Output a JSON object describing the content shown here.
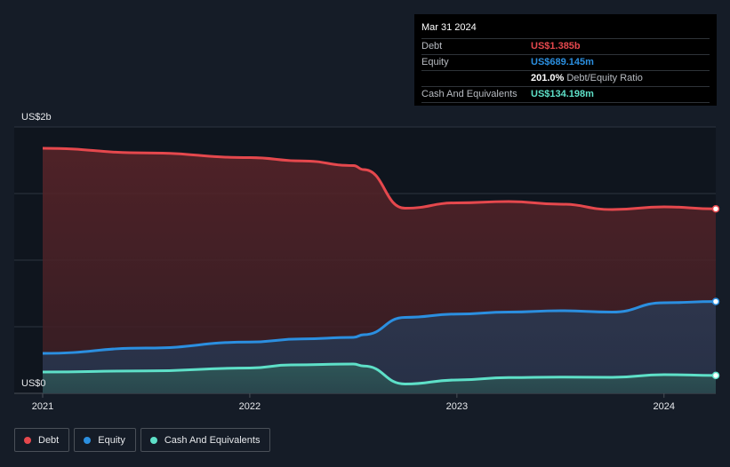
{
  "chart_data": {
    "type": "area",
    "y_top_label": "US$2b",
    "y_bottom_label": "US$0",
    "ylim": [
      0,
      2000
    ],
    "xlim": [
      2021.0,
      2024.25
    ],
    "x_ticks": [
      "2021",
      "2022",
      "2023",
      "2024"
    ],
    "grid": true,
    "legend_position": "bottom-left",
    "series": [
      {
        "name": "Debt",
        "color": "#e5484d",
        "points": [
          [
            2021.0,
            1840
          ],
          [
            2021.5,
            1805
          ],
          [
            2022.0,
            1770
          ],
          [
            2022.25,
            1745
          ],
          [
            2022.5,
            1710
          ],
          [
            2022.55,
            1680
          ],
          [
            2022.75,
            1390
          ],
          [
            2023.0,
            1430
          ],
          [
            2023.25,
            1440
          ],
          [
            2023.5,
            1420
          ],
          [
            2023.75,
            1380
          ],
          [
            2024.0,
            1400
          ],
          [
            2024.25,
            1385
          ]
        ]
      },
      {
        "name": "Equity",
        "color": "#2b8fe0",
        "points": [
          [
            2021.0,
            300
          ],
          [
            2021.5,
            340
          ],
          [
            2022.0,
            385
          ],
          [
            2022.25,
            408
          ],
          [
            2022.5,
            420
          ],
          [
            2022.55,
            440
          ],
          [
            2022.75,
            570
          ],
          [
            2023.0,
            595
          ],
          [
            2023.25,
            610
          ],
          [
            2023.5,
            620
          ],
          [
            2023.75,
            610
          ],
          [
            2024.0,
            680
          ],
          [
            2024.25,
            689.145
          ]
        ]
      },
      {
        "name": "Cash And Equivalents",
        "color": "#5ee0c8",
        "points": [
          [
            2021.0,
            160
          ],
          [
            2021.5,
            168
          ],
          [
            2022.0,
            190
          ],
          [
            2022.2,
            213
          ],
          [
            2022.5,
            220
          ],
          [
            2022.55,
            205
          ],
          [
            2022.75,
            70
          ],
          [
            2023.0,
            100
          ],
          [
            2023.25,
            118
          ],
          [
            2023.5,
            122
          ],
          [
            2023.75,
            120
          ],
          [
            2024.0,
            140
          ],
          [
            2024.25,
            134.198
          ]
        ]
      }
    ]
  },
  "tooltip": {
    "date": "Mar 31 2024",
    "rows": [
      {
        "label": "Debt",
        "value": "US$1.385b",
        "color": "#e5484d",
        "suffix": ""
      },
      {
        "label": "Equity",
        "value": "US$689.145m",
        "color": "#2b8fe0",
        "suffix": ""
      },
      {
        "label": "",
        "value": "201.0%",
        "color": "#ffffff",
        "suffix": "Debt/Equity Ratio"
      },
      {
        "label": "Cash And Equivalents",
        "value": "US$134.198m",
        "color": "#5ee0c8",
        "suffix": ""
      }
    ]
  },
  "legend": [
    {
      "label": "Debt",
      "color": "#e5484d"
    },
    {
      "label": "Equity",
      "color": "#2b8fe0"
    },
    {
      "label": "Cash And Equivalents",
      "color": "#5ee0c8"
    }
  ]
}
